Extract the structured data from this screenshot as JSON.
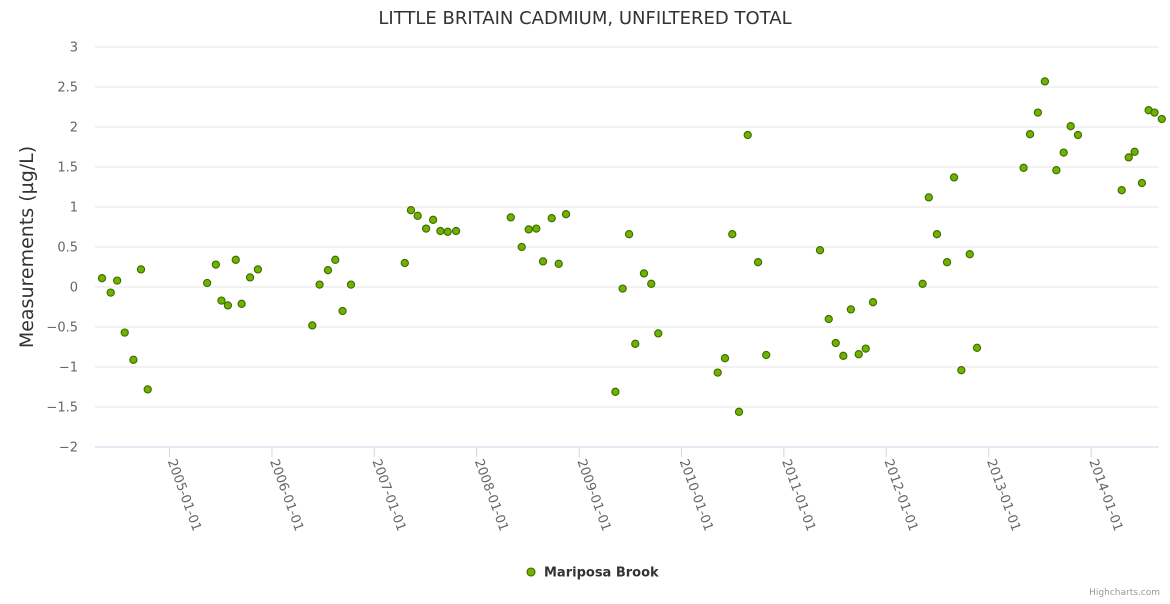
{
  "chart_data": {
    "type": "scatter",
    "title": "LITTLE BRITAIN CADMIUM, UNFILTERED TOTAL",
    "xlabel": "",
    "ylabel": "Measurements (µg/L)",
    "ylim": [
      -2,
      3
    ],
    "yticks": [
      -2,
      -1.5,
      -1,
      -0.5,
      0,
      0.5,
      1,
      1.5,
      2,
      2.5,
      3
    ],
    "ytick_labels": [
      "−2",
      "−1.5",
      "−1",
      "−0.5",
      "0",
      "0.5",
      "1",
      "1.5",
      "2",
      "2.5",
      "3"
    ],
    "x_axis_type": "datetime",
    "xlim": [
      "2004-04-10",
      "2014-08-31"
    ],
    "xticks": [
      "2005-01-01",
      "2006-01-01",
      "2007-01-01",
      "2008-01-01",
      "2009-01-01",
      "2010-01-01",
      "2011-01-01",
      "2012-01-01",
      "2013-01-01",
      "2014-01-01"
    ],
    "grid": true,
    "legend_position": "bottom-center",
    "series": [
      {
        "name": "Mariposa Brook",
        "color": "#6fb300",
        "edge_color": "#3d6a00",
        "points": [
          [
            "2004-05-05",
            0.11
          ],
          [
            "2004-06-05",
            -0.07
          ],
          [
            "2004-06-28",
            0.08
          ],
          [
            "2004-07-25",
            -0.57
          ],
          [
            "2004-08-25",
            -0.91
          ],
          [
            "2004-09-21",
            0.22
          ],
          [
            "2004-10-15",
            -1.28
          ],
          [
            "2005-05-15",
            0.05
          ],
          [
            "2005-06-15",
            0.28
          ],
          [
            "2005-07-05",
            -0.17
          ],
          [
            "2005-07-28",
            -0.23
          ],
          [
            "2005-08-25",
            0.34
          ],
          [
            "2005-09-15",
            -0.21
          ],
          [
            "2005-10-15",
            0.12
          ],
          [
            "2005-11-12",
            0.22
          ],
          [
            "2006-05-25",
            -0.48
          ],
          [
            "2006-06-20",
            0.03
          ],
          [
            "2006-07-20",
            0.21
          ],
          [
            "2006-08-15",
            0.34
          ],
          [
            "2006-09-10",
            -0.3
          ],
          [
            "2006-10-10",
            0.03
          ],
          [
            "2007-04-20",
            0.3
          ],
          [
            "2007-05-12",
            0.96
          ],
          [
            "2007-06-05",
            0.89
          ],
          [
            "2007-07-05",
            0.73
          ],
          [
            "2007-07-30",
            0.84
          ],
          [
            "2007-08-25",
            0.7
          ],
          [
            "2007-09-20",
            0.69
          ],
          [
            "2007-10-20",
            0.7
          ],
          [
            "2008-05-02",
            0.87
          ],
          [
            "2008-06-10",
            0.5
          ],
          [
            "2008-07-05",
            0.72
          ],
          [
            "2008-08-01",
            0.73
          ],
          [
            "2008-08-25",
            0.32
          ],
          [
            "2008-09-25",
            0.86
          ],
          [
            "2008-10-20",
            0.29
          ],
          [
            "2008-11-15",
            0.91
          ],
          [
            "2009-05-10",
            -1.31
          ],
          [
            "2009-06-05",
            -0.02
          ],
          [
            "2009-06-28",
            0.66
          ],
          [
            "2009-07-20",
            -0.71
          ],
          [
            "2009-08-20",
            0.17
          ],
          [
            "2009-09-15",
            0.04
          ],
          [
            "2009-10-10",
            -0.58
          ],
          [
            "2010-05-10",
            -1.07
          ],
          [
            "2010-06-05",
            -0.89
          ],
          [
            "2010-07-01",
            0.66
          ],
          [
            "2010-07-25",
            -1.56
          ],
          [
            "2010-08-25",
            1.9
          ],
          [
            "2010-10-01",
            0.31
          ],
          [
            "2010-10-30",
            -0.85
          ],
          [
            "2011-05-10",
            0.46
          ],
          [
            "2011-06-10",
            -0.4
          ],
          [
            "2011-07-05",
            -0.7
          ],
          [
            "2011-08-01",
            -0.86
          ],
          [
            "2011-08-28",
            -0.28
          ],
          [
            "2011-09-25",
            -0.84
          ],
          [
            "2011-10-20",
            -0.77
          ],
          [
            "2011-11-15",
            -0.19
          ],
          [
            "2012-05-10",
            0.04
          ],
          [
            "2012-06-01",
            1.12
          ],
          [
            "2012-06-30",
            0.66
          ],
          [
            "2012-08-05",
            0.31
          ],
          [
            "2012-08-30",
            1.37
          ],
          [
            "2012-09-25",
            -1.04
          ],
          [
            "2012-10-25",
            0.41
          ],
          [
            "2012-11-20",
            -0.76
          ],
          [
            "2013-05-05",
            1.49
          ],
          [
            "2013-05-28",
            1.91
          ],
          [
            "2013-06-25",
            2.18
          ],
          [
            "2013-07-20",
            2.57
          ],
          [
            "2013-08-30",
            1.46
          ],
          [
            "2013-09-25",
            1.68
          ],
          [
            "2013-10-20",
            2.01
          ],
          [
            "2013-11-15",
            1.9
          ],
          [
            "2014-04-20",
            1.21
          ],
          [
            "2014-05-15",
            1.62
          ],
          [
            "2014-06-05",
            1.69
          ],
          [
            "2014-07-01",
            1.3
          ],
          [
            "2014-07-25",
            2.21
          ],
          [
            "2014-08-15",
            2.18
          ],
          [
            "2014-09-10",
            2.1
          ]
        ]
      }
    ]
  },
  "credits": {
    "label": "Highcharts.com"
  }
}
